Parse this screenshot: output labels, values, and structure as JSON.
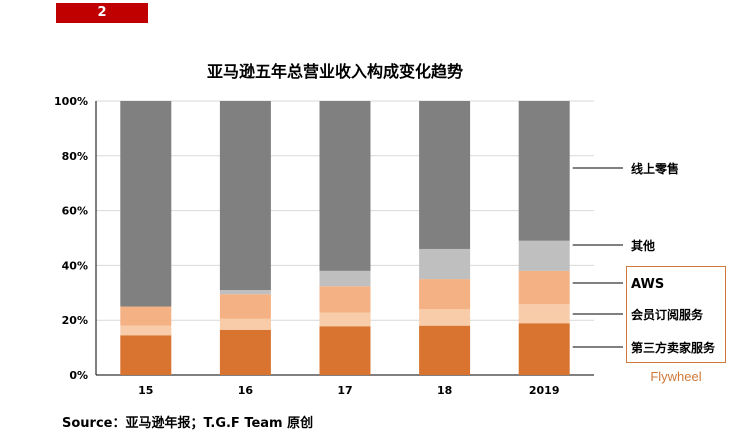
{
  "page_badge": "2",
  "source_note": "Source：亚马逊年报；T.G.F Team 原创",
  "flywheel_label": "Flywheel",
  "chart_data": {
    "type": "bar",
    "stacked": true,
    "percent": true,
    "title": "亚马逊五年总营业收入构成变化趋势",
    "categories": [
      "15",
      "16",
      "17",
      "18",
      "2019"
    ],
    "ylim": [
      0,
      100
    ],
    "yticks": [
      "0%",
      "20%",
      "40%",
      "60%",
      "80%",
      "100%"
    ],
    "grid": true,
    "legend": "right",
    "series": [
      {
        "name": "第三方卖家服务",
        "color": "#d8742f",
        "values": [
          14.5,
          16.5,
          17.8,
          18.0,
          18.9
        ]
      },
      {
        "name": "会员订阅服务",
        "color": "#f8cba9",
        "values": [
          3.5,
          4.0,
          5.0,
          6.0,
          7.0
        ]
      },
      {
        "name": "AWS",
        "color": "#f4b183",
        "values": [
          7.0,
          9.0,
          9.6,
          11.0,
          12.1
        ]
      },
      {
        "name": "其他",
        "color": "#bfbfbf",
        "values": [
          0.0,
          1.5,
          5.6,
          11.0,
          11.0
        ]
      },
      {
        "name": "线上零售",
        "color": "#808080",
        "values": [
          75.0,
          69.0,
          62.0,
          54.0,
          51.0
        ]
      }
    ],
    "legend_order": [
      "线上零售",
      "其他",
      "AWS",
      "会员订阅服务",
      "第三方卖家服务"
    ]
  }
}
